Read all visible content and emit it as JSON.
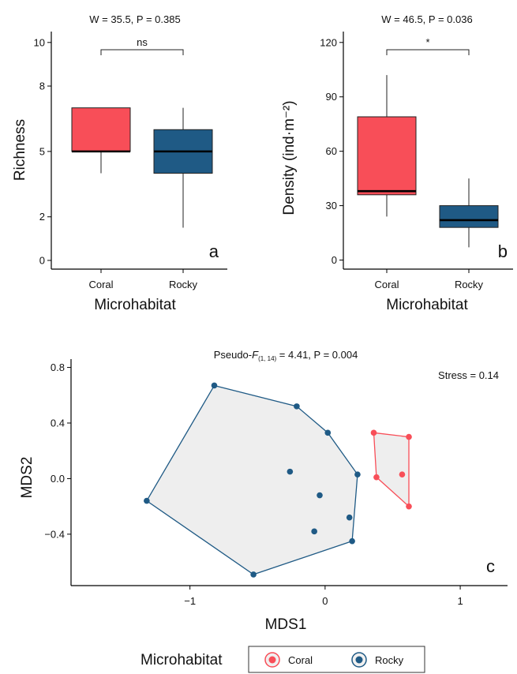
{
  "chart_data": [
    {
      "panel": "a",
      "type": "box",
      "title_stat": "W = 35.5, P = 0.385",
      "xlabel": "Microhabitat",
      "ylabel": "Richness",
      "categories": [
        "Coral",
        "Rocky"
      ],
      "ylim": [
        -0.4,
        10.5
      ],
      "yticks": [
        0,
        2,
        5,
        8,
        10
      ],
      "yticks_text": [
        "0",
        "2",
        "5",
        "8",
        "10"
      ],
      "boxes": [
        {
          "name": "Coral",
          "lower_whisker": 4.0,
          "q1": 5.0,
          "median": 5.0,
          "q3": 7.0,
          "upper_whisker": 7.0,
          "color": "#f84e58"
        },
        {
          "name": "Rocky",
          "lower_whisker": 1.5,
          "q1": 4.0,
          "median": 5.0,
          "q3": 6.0,
          "upper_whisker": 7.0,
          "color": "#1f5a85"
        }
      ],
      "significance": "ns",
      "panel_letter": "a"
    },
    {
      "panel": "b",
      "type": "box",
      "title_stat": "W = 46.5, P = 0.036",
      "xlabel": "Microhabitat",
      "ylabel": "Density (ind·m⁻²)",
      "categories": [
        "Coral",
        "Rocky"
      ],
      "ylim": [
        -5,
        126
      ],
      "yticks": [
        0,
        30,
        60,
        90,
        120
      ],
      "yticks_text": [
        "0",
        "30",
        "60",
        "90",
        "120"
      ],
      "boxes": [
        {
          "name": "Coral",
          "lower_whisker": 24,
          "q1": 36,
          "median": 38,
          "q3": 79,
          "upper_whisker": 102,
          "color": "#f84e58"
        },
        {
          "name": "Rocky",
          "lower_whisker": 7,
          "q1": 18,
          "median": 22,
          "q3": 30,
          "upper_whisker": 45,
          "color": "#1f5a85"
        }
      ],
      "significance": "*",
      "panel_letter": "b"
    },
    {
      "panel": "c",
      "type": "scatter",
      "title_stat_prefix": "Pseudo-",
      "title_stat_F": "F",
      "title_stat_sub": "(1, 14)",
      "title_stat_suffix": " = 4.41, P = 0.004",
      "stress": "Stress = 0.14",
      "xlabel": "MDS1",
      "ylabel": "MDS2",
      "xlim": [
        -1.88,
        1.35
      ],
      "ylim": [
        -0.77,
        0.86
      ],
      "xticks": [
        -1,
        0,
        1
      ],
      "xticks_text": [
        "−1",
        "0",
        "1"
      ],
      "yticks": [
        -0.4,
        0.0,
        0.4,
        0.8
      ],
      "yticks_text": [
        "−0.4",
        "0.0",
        "0.4",
        "0.8"
      ],
      "series": [
        {
          "name": "Coral",
          "color": "#f84e58",
          "points": [
            [
              0.36,
              0.33
            ],
            [
              0.62,
              0.3
            ],
            [
              0.38,
              0.01
            ],
            [
              0.57,
              0.03
            ],
            [
              0.62,
              -0.2
            ]
          ],
          "hull": [
            [
              0.36,
              0.33
            ],
            [
              0.62,
              0.3
            ],
            [
              0.62,
              -0.2
            ],
            [
              0.38,
              0.01
            ]
          ]
        },
        {
          "name": "Rocky",
          "color": "#1f5a85",
          "points": [
            [
              -0.82,
              0.67
            ],
            [
              -0.21,
              0.52
            ],
            [
              0.02,
              0.33
            ],
            [
              0.24,
              0.03
            ],
            [
              -0.26,
              0.05
            ],
            [
              -0.04,
              -0.12
            ],
            [
              0.18,
              -0.28
            ],
            [
              -0.08,
              -0.38
            ],
            [
              0.2,
              -0.45
            ],
            [
              -0.53,
              -0.69
            ],
            [
              -1.32,
              -0.16
            ]
          ],
          "hull": [
            [
              -0.82,
              0.67
            ],
            [
              -0.21,
              0.52
            ],
            [
              0.02,
              0.33
            ],
            [
              0.24,
              0.03
            ],
            [
              0.2,
              -0.45
            ],
            [
              -0.53,
              -0.69
            ],
            [
              -1.32,
              -0.16
            ]
          ]
        }
      ],
      "panel_letter": "c"
    }
  ],
  "legend": {
    "title": "Microhabitat",
    "items": [
      {
        "label": "Coral",
        "color": "#f84e58"
      },
      {
        "label": "Rocky",
        "color": "#1f5a85"
      }
    ]
  }
}
